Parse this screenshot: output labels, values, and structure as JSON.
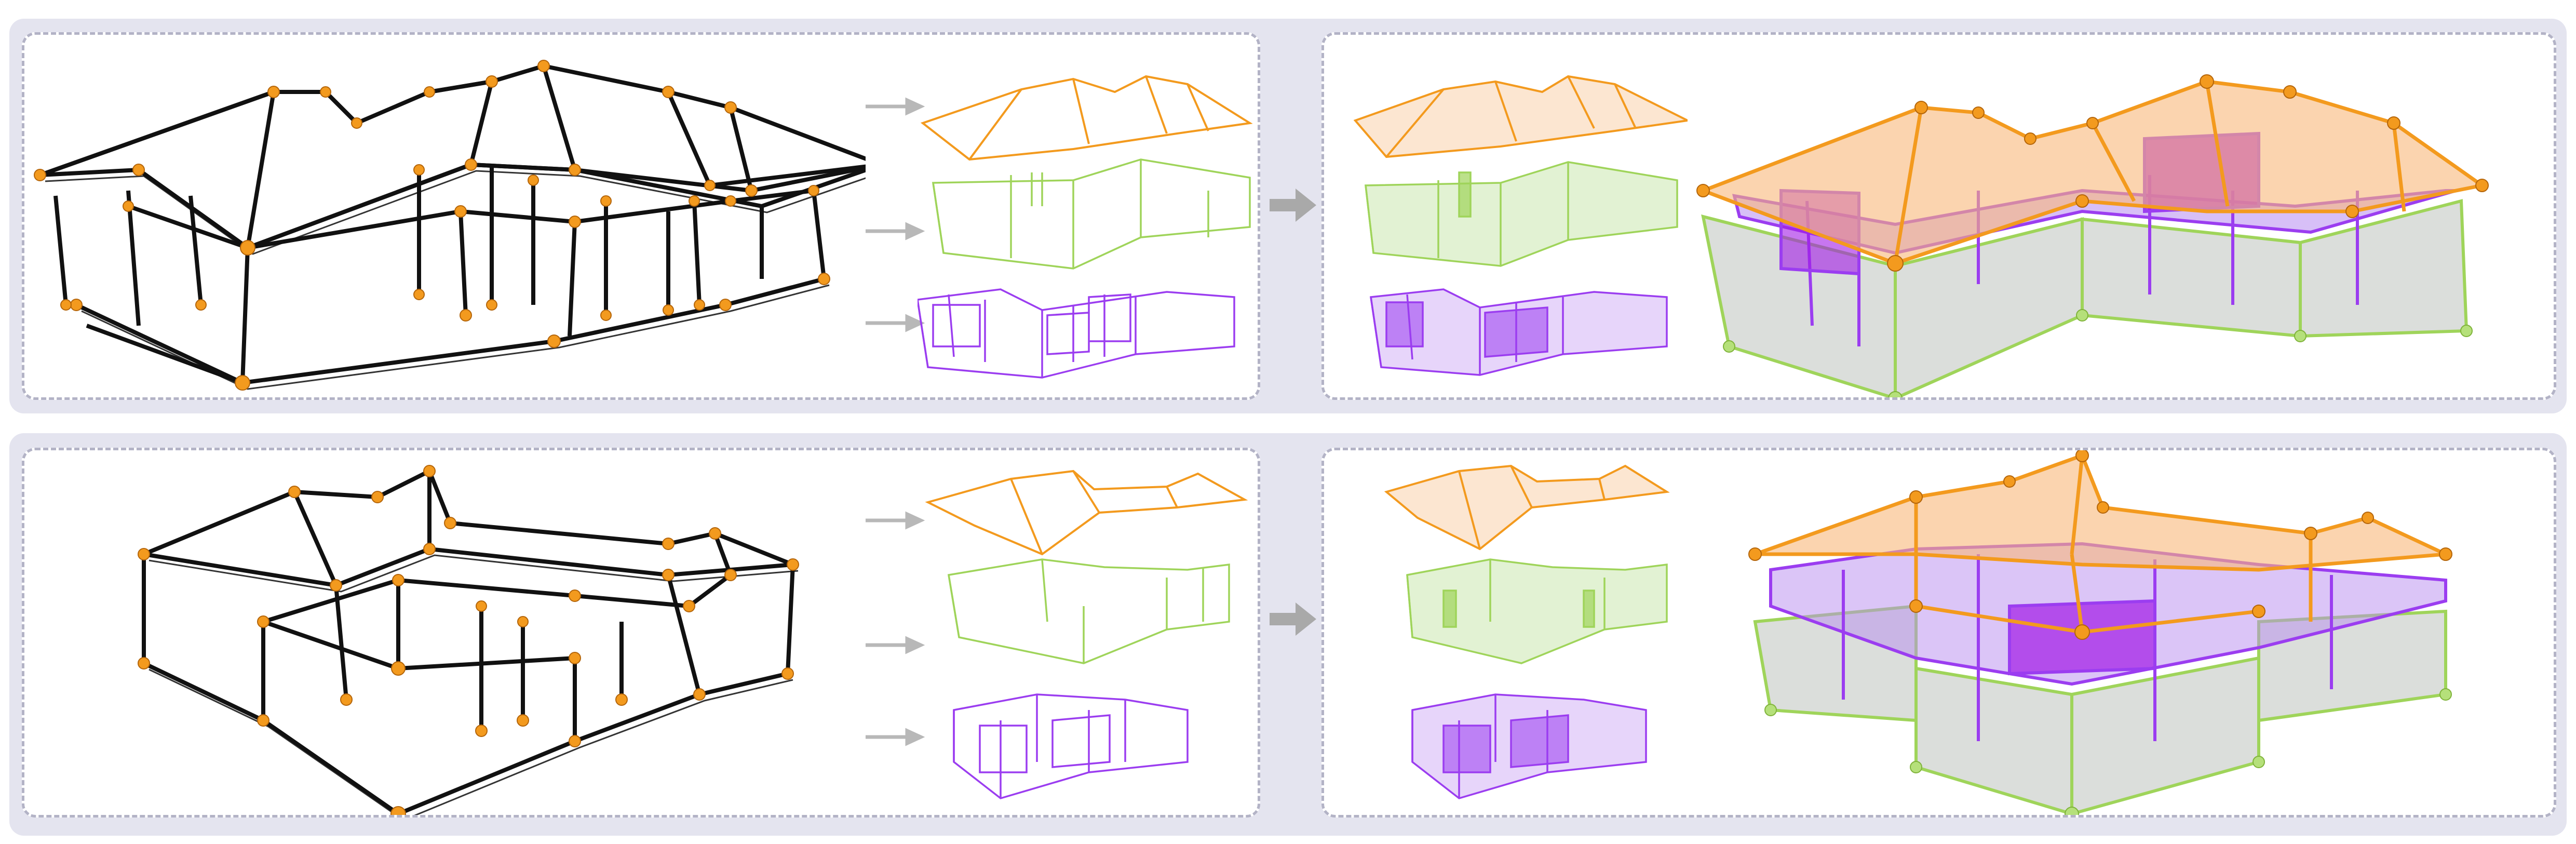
{
  "figure": {
    "rows": [
      {
        "id": "row-1"
      },
      {
        "id": "row-2"
      }
    ],
    "stages": [
      "wireframe-input",
      "decomposed-layers",
      "assembled-model"
    ],
    "layers": [
      {
        "name": "roof",
        "color": "#f39a1e"
      },
      {
        "name": "outer-walls",
        "color": "#9fd45a"
      },
      {
        "name": "interior-rooms",
        "color": "#9b3df0"
      }
    ],
    "colors": {
      "wire": "#111111",
      "joint": "#f39a1e",
      "band": "#e4e4ef",
      "panel_border": "#b3b3c6",
      "arrow": "#a9a9a9"
    }
  }
}
